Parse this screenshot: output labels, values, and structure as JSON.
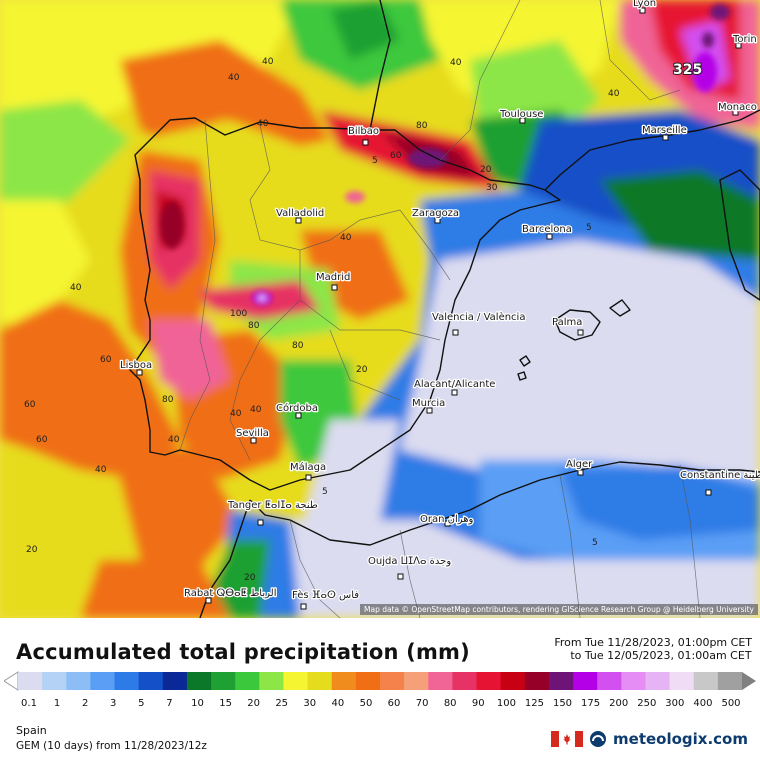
{
  "map": {
    "attribution": "Map data © OpenStreetMap contributors, rendering GIScience Research Group @ Heidelberg University",
    "peak_value": "325",
    "cities": [
      {
        "name": "Lyon"
      },
      {
        "name": "Torin"
      },
      {
        "name": "Monaco"
      },
      {
        "name": "Marseille"
      },
      {
        "name": "Toulouse"
      },
      {
        "name": "Bilbao"
      },
      {
        "name": "Zaragoza"
      },
      {
        "name": "Barcelona"
      },
      {
        "name": "Valladolid"
      },
      {
        "name": "Madrid"
      },
      {
        "name": "Valencia / València"
      },
      {
        "name": "Palma"
      },
      {
        "name": "Lisboa"
      },
      {
        "name": "Alacant/Alicante"
      },
      {
        "name": "Murcia"
      },
      {
        "name": "Córdoba"
      },
      {
        "name": "Sevilla"
      },
      {
        "name": "Málaga"
      },
      {
        "name": "Alger"
      },
      {
        "name": "Constantine قسنطينة"
      },
      {
        "name": "Tanger ⵟⴰⵏⵊⴰ طنجة"
      },
      {
        "name": "Oran وهران"
      },
      {
        "name": "Oujda ⵡⵊⴷⴰ وجدة"
      },
      {
        "name": "Rabat ⵕⴱⴰⵟ الرباط"
      },
      {
        "name": "Fès ⴼⴰⵙ فاس"
      }
    ],
    "contour_labels": [
      "40",
      "40",
      "40",
      "40",
      "40",
      "40",
      "40",
      "40",
      "40",
      "40",
      "60",
      "60",
      "60",
      "80",
      "80",
      "80",
      "80",
      "100",
      "20",
      "20",
      "20",
      "20",
      "30",
      "5",
      "5",
      "5",
      "5",
      "60",
      "40"
    ]
  },
  "legend": {
    "title": "Accumulated total precipitation (mm)",
    "from": "From Tue 11/28/2023, 01:00pm CET",
    "to": "to Tue 12/05/2023, 01:00am CET",
    "ticks": [
      "0.1",
      "1",
      "2",
      "3",
      "5",
      "7",
      "10",
      "15",
      "20",
      "25",
      "30",
      "40",
      "50",
      "60",
      "70",
      "80",
      "90",
      "100",
      "125",
      "150",
      "175",
      "200",
      "250",
      "300",
      "400",
      "500"
    ],
    "colors": [
      "#dcdcf0",
      "#b4d2f5",
      "#8cbef5",
      "#5a9ef5",
      "#2d7be6",
      "#1450c8",
      "#0a2896",
      "#0a7828",
      "#1ea032",
      "#3cc83c",
      "#8ce646",
      "#f5f532",
      "#e6dc1e",
      "#f08c1e",
      "#f06e14",
      "#f5824b",
      "#f5a078",
      "#f06496",
      "#e63264",
      "#e61432",
      "#c80014",
      "#960028",
      "#6e1478",
      "#b400e6",
      "#d250f0",
      "#e68cf5",
      "#e6b4f5",
      "#f0dcf5",
      "#c8c8c8",
      "#a0a0a0"
    ],
    "region": "Spain",
    "model": "GEM (10 days) from 11/28/2023/12z",
    "brand": "meteologix.com"
  }
}
